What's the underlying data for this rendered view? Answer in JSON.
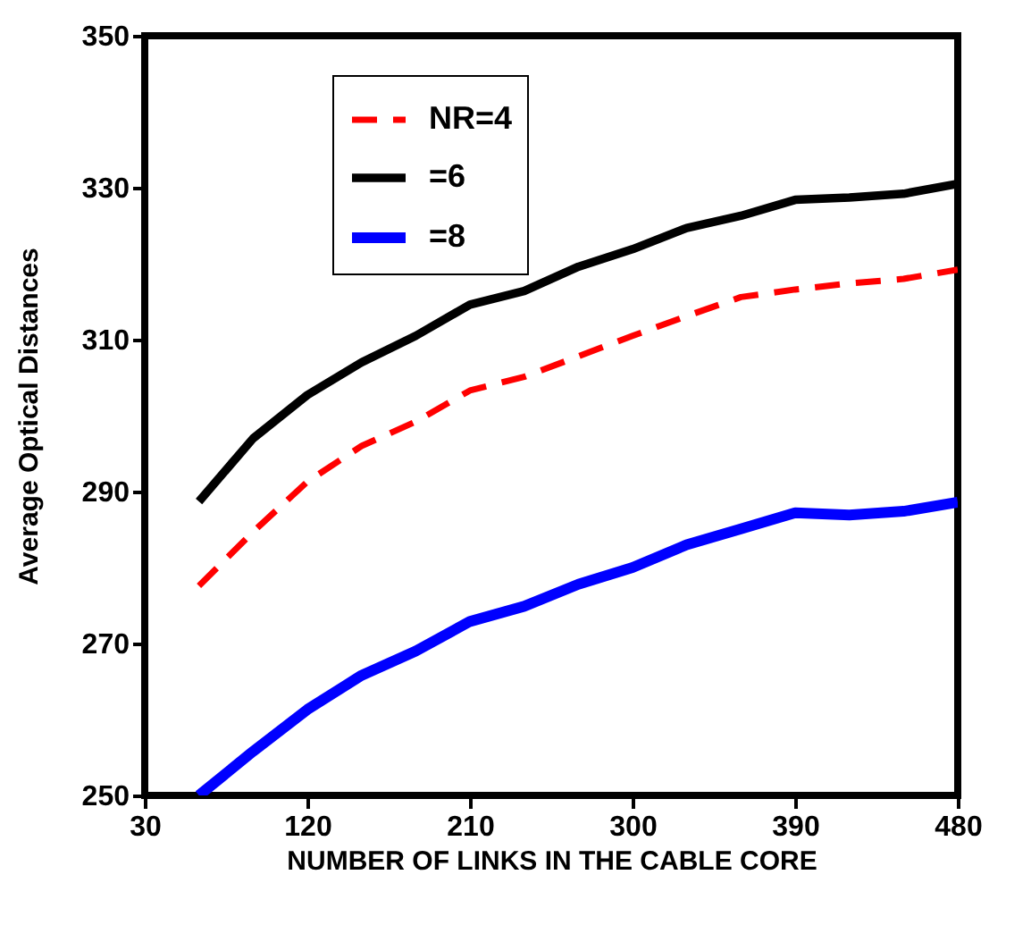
{
  "chart_data": {
    "type": "line",
    "xlabel": "NUMBER OF LINKS IN THE CABLE CORE",
    "ylabel": "Average Optical Distances",
    "x": [
      60,
      90,
      120,
      150,
      180,
      210,
      240,
      270,
      300,
      330,
      360,
      390,
      420,
      450,
      480
    ],
    "series": [
      {
        "name": "NR=4",
        "color": "#ff0000",
        "line_style": "dashed",
        "values": [
          277.6,
          284.7,
          291.3,
          296,
          299.2,
          303.3,
          305.1,
          307.8,
          310.5,
          313.1,
          315.6,
          316.6,
          317.4,
          318,
          319.2
        ]
      },
      {
        "name": "=6",
        "color": "#000000",
        "line_style": "solid",
        "values": [
          288.7,
          297,
          302.7,
          307,
          310.5,
          314.6,
          316.4,
          319.6,
          321.9,
          324.7,
          326.3,
          328.4,
          328.7,
          329.2,
          330.5
        ]
      },
      {
        "name": "=8",
        "color": "#0000ff",
        "line_style": "solid",
        "values": [
          250,
          255.8,
          261.3,
          265.8,
          269,
          272.9,
          274.9,
          277.8,
          280,
          283,
          285.1,
          287.2,
          286.9,
          287.4,
          288.6
        ]
      }
    ],
    "xlim": [
      30,
      480
    ],
    "xticks": [
      30,
      120,
      210,
      300,
      390,
      480
    ],
    "ylim": [
      250,
      350
    ],
    "yticks": [
      250,
      270,
      290,
      310,
      330,
      350
    ],
    "grid": false,
    "legend": "top left",
    "marker": "none"
  }
}
